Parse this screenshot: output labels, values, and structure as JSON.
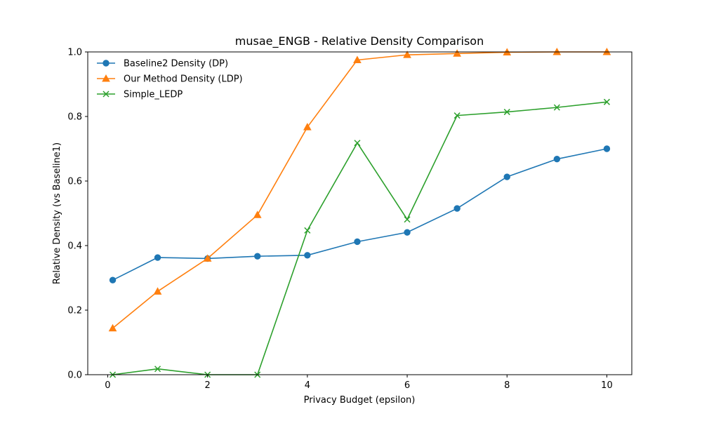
{
  "chart_data": {
    "type": "line",
    "title": "musae_ENGB - Relative Density Comparison",
    "xlabel": "Privacy Budget (epsilon)",
    "ylabel": "Relative Density (vs Baseline1)",
    "xlim": [
      -0.4,
      10.5
    ],
    "ylim": [
      0,
      1.0
    ],
    "xticks": [
      0,
      2,
      4,
      6,
      8,
      10
    ],
    "yticks": [
      0.0,
      0.2,
      0.4,
      0.6,
      0.8,
      1.0
    ],
    "xtick_labels": [
      "0",
      "2",
      "4",
      "6",
      "8",
      "10"
    ],
    "ytick_labels": [
      "0.0",
      "0.2",
      "0.4",
      "0.6",
      "0.8",
      "1.0"
    ],
    "grid": false,
    "legend_position": "top-left",
    "x": [
      0.1,
      1,
      2,
      3,
      4,
      5,
      6,
      7,
      8,
      9,
      10
    ],
    "series": [
      {
        "name": "Baseline2 Density (DP)",
        "marker": "circle",
        "color": "#1f77b4",
        "values": [
          0.293,
          0.363,
          0.36,
          0.367,
          0.37,
          0.412,
          0.441,
          0.515,
          0.613,
          0.668,
          0.7
        ]
      },
      {
        "name": "Our Method Density (LDP)",
        "marker": "triangle",
        "color": "#ff7f0e",
        "values": [
          0.144,
          0.258,
          0.36,
          0.495,
          0.767,
          0.975,
          0.991,
          0.995,
          0.999,
          1.0,
          1.0
        ]
      },
      {
        "name": "Simple_LEDP",
        "marker": "x",
        "color": "#2ca02c",
        "values": [
          0.0,
          0.018,
          0.0,
          0.0,
          0.447,
          0.718,
          0.481,
          0.803,
          0.814,
          0.828,
          0.845
        ]
      }
    ]
  }
}
